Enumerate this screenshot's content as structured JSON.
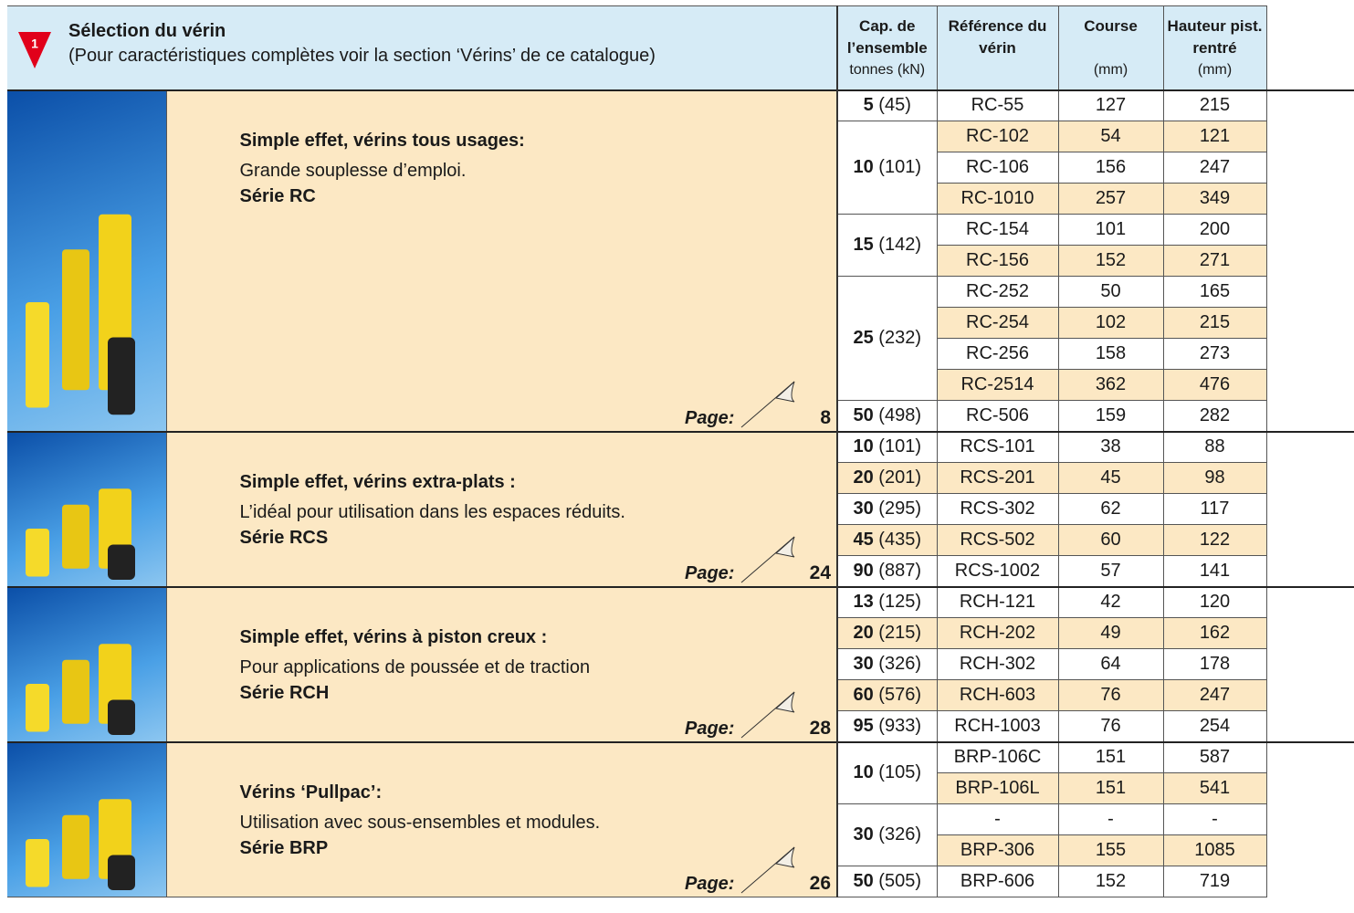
{
  "header": {
    "badge": "1",
    "title": "Sélection du vérin",
    "subtitle": "(Pour caractéristiques complètes voir la section ‘Vérins’ de ce catalogue)",
    "columns": [
      {
        "title": "Cap. de l’ensemble",
        "unit": "tonnes (kN)"
      },
      {
        "title": "Référence du vérin",
        "unit": ""
      },
      {
        "title": "Course",
        "unit": "(mm)"
      },
      {
        "title": "Hauteur pist. rentré",
        "unit": "(mm)"
      }
    ]
  },
  "sections": [
    {
      "heading": "Simple effet, vérins tous usages:",
      "description": "Grande souplesse d’emploi.",
      "series": "Série RC",
      "page_label": "Page:",
      "page": "8",
      "groups": [
        {
          "tonnes": "5",
          "kn": "(45)",
          "rows": [
            {
              "ref": "RC-55",
              "course": "127",
              "hauteur": "215"
            }
          ]
        },
        {
          "tonnes": "10",
          "kn": "(101)",
          "rows": [
            {
              "ref": "RC-102",
              "course": "54",
              "hauteur": "121"
            },
            {
              "ref": "RC-106",
              "course": "156",
              "hauteur": "247"
            },
            {
              "ref": "RC-1010",
              "course": "257",
              "hauteur": "349"
            }
          ]
        },
        {
          "tonnes": "15",
          "kn": "(142)",
          "rows": [
            {
              "ref": "RC-154",
              "course": "101",
              "hauteur": "200"
            },
            {
              "ref": "RC-156",
              "course": "152",
              "hauteur": "271"
            }
          ]
        },
        {
          "tonnes": "25",
          "kn": "(232)",
          "rows": [
            {
              "ref": "RC-252",
              "course": "50",
              "hauteur": "165"
            },
            {
              "ref": "RC-254",
              "course": "102",
              "hauteur": "215"
            },
            {
              "ref": "RC-256",
              "course": "158",
              "hauteur": "273"
            },
            {
              "ref": "RC-2514",
              "course": "362",
              "hauteur": "476"
            }
          ]
        },
        {
          "tonnes": "50",
          "kn": "(498)",
          "rows": [
            {
              "ref": "RC-506",
              "course": "159",
              "hauteur": "282"
            }
          ]
        }
      ]
    },
    {
      "heading": "Simple effet, vérins extra-plats :",
      "description": "L’idéal pour utilisation dans les espaces réduits.",
      "series": "Série RCS",
      "page_label": "Page:",
      "page": "24",
      "groups": [
        {
          "tonnes": "10",
          "kn": "(101)",
          "rows": [
            {
              "ref": "RCS-101",
              "course": "38",
              "hauteur": "88"
            }
          ]
        },
        {
          "tonnes": "20",
          "kn": "(201)",
          "rows": [
            {
              "ref": "RCS-201",
              "course": "45",
              "hauteur": "98"
            }
          ]
        },
        {
          "tonnes": "30",
          "kn": "(295)",
          "rows": [
            {
              "ref": "RCS-302",
              "course": "62",
              "hauteur": "117"
            }
          ]
        },
        {
          "tonnes": "45",
          "kn": "(435)",
          "rows": [
            {
              "ref": "RCS-502",
              "course": "60",
              "hauteur": "122"
            }
          ]
        },
        {
          "tonnes": "90",
          "kn": "(887)",
          "rows": [
            {
              "ref": "RCS-1002",
              "course": "57",
              "hauteur": "141"
            }
          ]
        }
      ]
    },
    {
      "heading": "Simple effet, vérins à piston creux :",
      "description": "Pour applications de poussée et de traction",
      "series": "Série RCH",
      "page_label": "Page:",
      "page": "28",
      "groups": [
        {
          "tonnes": "13",
          "kn": "(125)",
          "rows": [
            {
              "ref": "RCH-121",
              "course": "42",
              "hauteur": "120"
            }
          ]
        },
        {
          "tonnes": "20",
          "kn": "(215)",
          "rows": [
            {
              "ref": "RCH-202",
              "course": "49",
              "hauteur": "162"
            }
          ]
        },
        {
          "tonnes": "30",
          "kn": "(326)",
          "rows": [
            {
              "ref": "RCH-302",
              "course": "64",
              "hauteur": "178"
            }
          ]
        },
        {
          "tonnes": "60",
          "kn": "(576)",
          "rows": [
            {
              "ref": "RCH-603",
              "course": "76",
              "hauteur": "247"
            }
          ]
        },
        {
          "tonnes": "95",
          "kn": "(933)",
          "rows": [
            {
              "ref": "RCH-1003",
              "course": "76",
              "hauteur": "254"
            }
          ]
        }
      ]
    },
    {
      "heading": "Vérins ‘Pullpac’:",
      "description": "Utilisation avec sous-ensembles et modules.",
      "series": "Série BRP",
      "page_label": "Page:",
      "page": "26",
      "groups": [
        {
          "tonnes": "10",
          "kn": "(105)",
          "rows": [
            {
              "ref": "BRP-106C",
              "course": "151",
              "hauteur": "587"
            },
            {
              "ref": "BRP-106L",
              "course": "151",
              "hauteur": "541"
            }
          ]
        },
        {
          "tonnes": "30",
          "kn": "(326)",
          "rows": [
            {
              "ref": "-",
              "course": "-",
              "hauteur": "-"
            },
            {
              "ref": "BRP-306",
              "course": "155",
              "hauteur": "1085"
            }
          ]
        },
        {
          "tonnes": "50",
          "kn": "(505)",
          "rows": [
            {
              "ref": "BRP-606",
              "course": "152",
              "hauteur": "719"
            }
          ]
        }
      ]
    }
  ]
}
